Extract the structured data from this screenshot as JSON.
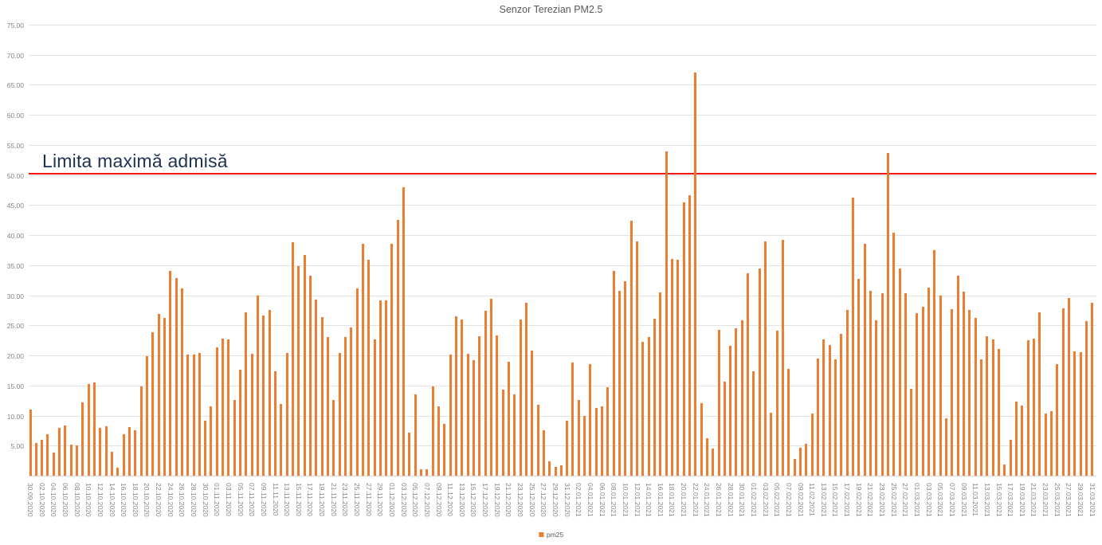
{
  "page": {
    "title": "Senzor Terezian PM2.5"
  },
  "chart_data": {
    "type": "bar",
    "title": "Senzor Terezian PM2.5",
    "xlabel": "",
    "ylabel": "",
    "ylim": [
      0,
      75
    ],
    "y_tick_step": 5,
    "y_tick_decimals": 2,
    "grid": true,
    "grid_color": "#e3e3e3",
    "axis_text_color": "#848484",
    "title_color": "#595959",
    "legend": {
      "position": "bottom",
      "entries": [
        {
          "label": "pm25",
          "color": "#ED7D31"
        }
      ]
    },
    "annotation": {
      "text": "Limita maximă admisă",
      "y_value": 50,
      "line_color": "#FB1511",
      "text_color": "#1F3150"
    },
    "x_label_every_n_bars": 2,
    "x_tick_labels": [
      "30.09.2020",
      "02.10.2020",
      "04.10.2020",
      "06.10.2020",
      "08.10.2020",
      "10.10.2020",
      "12.10.2020",
      "14.10.2020",
      "16.10.2020",
      "18.10.2020",
      "20.10.2020",
      "22.10.2020",
      "24.10.2020",
      "26.10.2020",
      "28.10.2020",
      "30.10.2020",
      "01.11.2020",
      "03.11.2020",
      "05.11.2020",
      "07.11.2020",
      "09.11.2020",
      "11.11.2020",
      "13.11.2020",
      "15.11.2020",
      "17.11.2020",
      "19.11.2020",
      "21.11.2020",
      "23.11.2020",
      "25.11.2020",
      "27.11.2020",
      "29.11.2020",
      "01.12.2020",
      "03.12.2020",
      "05.12.2020",
      "07.12.2020",
      "09.12.2020",
      "11.12.2020",
      "13.12.2020",
      "15.12.2020",
      "17.12.2020",
      "19.12.2020",
      "21.12.2020",
      "23.12.2020",
      "25.12.2020",
      "27.12.2020",
      "29.12.2020",
      "31.12.2020",
      "02.01.2021",
      "04.01.2021",
      "06.01.2021",
      "08.01.2021",
      "10.01.2021",
      "12.01.2021",
      "14.01.2021",
      "16.01.2021",
      "18.01.2021",
      "20.01.2021",
      "22.01.2021",
      "24.01.2021",
      "26.01.2021",
      "28.01.2021",
      "30.01.2021",
      "01.02.2021",
      "03.02.2021",
      "05.02.2021",
      "07.02.2021",
      "09.02.2021",
      "11.02.2021",
      "13.02.2021",
      "15.02.2021",
      "17.02.2021",
      "19.02.2021",
      "21.02.2021",
      "23.02.2021",
      "25.02.2021",
      "27.02.2021",
      "01.03.2021",
      "03.03.2021",
      "05.03.2021",
      "07.03.2021",
      "09.03.2021",
      "11.03.2021",
      "13.03.2021",
      "15.03.2021",
      "17.03.2021",
      "19.03.2021",
      "21.03.2021",
      "23.03.2021",
      "25.03.2021",
      "27.03.2021",
      "29.03.2021",
      "31.03.2021"
    ],
    "series": [
      {
        "name": "pm25",
        "color": "#ED7D31",
        "values": [
          11.0,
          5.5,
          6.0,
          6.9,
          3.9,
          8.0,
          8.4,
          5.2,
          5.1,
          12.2,
          15.2,
          15.5,
          8.0,
          8.2,
          4.0,
          1.3,
          6.9,
          8.1,
          7.6,
          14.8,
          19.9,
          23.8,
          26.9,
          26.3,
          34.1,
          32.9,
          31.2,
          20.1,
          20.2,
          20.4,
          9.1,
          11.5,
          21.3,
          22.8,
          22.7,
          12.6,
          17.6,
          27.2,
          20.3,
          30.0,
          26.6,
          27.6,
          17.4,
          11.9,
          20.4,
          38.8,
          34.9,
          36.7,
          33.2,
          29.3,
          26.4,
          23.1,
          12.6,
          20.4,
          23.0,
          24.7,
          31.2,
          38.5,
          35.9,
          22.6,
          29.1,
          29.2,
          38.5,
          42.6,
          48.0,
          7.2,
          13.5,
          1.0,
          1.1,
          14.8,
          11.5,
          8.6,
          20.2,
          26.5,
          26.0,
          20.3,
          19.2,
          23.2,
          27.4,
          29.4,
          23.3,
          14.3,
          18.9,
          13.5,
          26.0,
          28.7,
          20.8,
          11.8,
          7.5,
          2.4,
          1.5,
          1.7,
          9.1,
          18.8,
          12.6,
          10.0,
          18.5,
          11.3,
          11.5,
          14.7,
          34.1,
          30.8,
          32.4,
          42.4,
          38.9,
          22.2,
          23.0,
          26.1,
          30.5,
          53.9,
          36.0,
          35.9,
          45.4,
          46.7,
          67.0,
          12.0,
          6.2,
          4.5,
          24.2,
          15.7,
          21.6,
          24.5,
          25.9,
          33.6,
          17.4,
          34.5,
          39.0,
          10.5,
          24.1,
          39.2,
          17.7,
          2.8,
          4.7,
          5.3,
          10.3,
          19.5,
          22.6,
          21.7,
          19.4,
          23.6,
          27.5,
          46.2,
          32.7,
          38.6,
          30.7,
          25.9,
          30.4,
          53.7,
          40.4,
          34.4,
          30.3,
          14.4,
          27.1,
          28.1,
          31.3,
          37.5,
          30.0,
          9.5,
          27.7,
          33.2,
          30.6,
          27.6,
          26.3,
          19.4,
          23.2,
          22.6,
          21.1,
          1.9,
          6.0,
          12.3,
          11.6,
          22.5,
          22.8,
          27.2,
          10.4,
          10.8,
          18.5,
          27.8,
          29.6,
          20.7,
          20.6,
          25.7,
          28.7
        ]
      }
    ]
  }
}
